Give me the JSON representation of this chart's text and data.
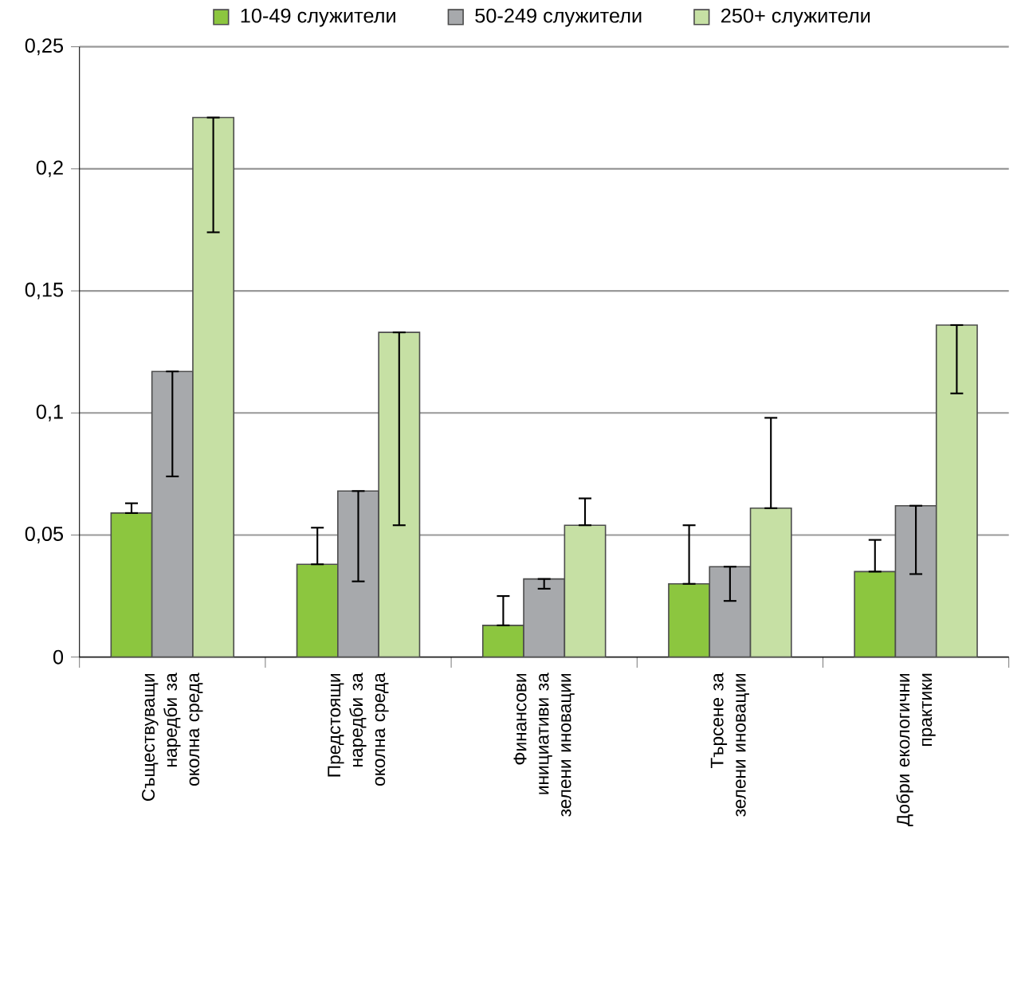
{
  "chart_data": {
    "type": "bar",
    "categories": [
      "Съществуващи наредби за околна среда",
      "Предстоящи наредби за околна среда",
      "Финансови инициативи за зелени иновации",
      "Търсене за зелени иновации",
      "Добри екологични практики"
    ],
    "series": [
      {
        "name": "10-49 служители",
        "color": "#8cc63f",
        "values": [
          0.059,
          0.038,
          0.013,
          0.03,
          0.035
        ],
        "errors": [
          [
            0.059,
            0.063
          ],
          [
            0.038,
            0.053
          ],
          [
            0.013,
            0.025
          ],
          [
            0.03,
            0.054
          ],
          [
            0.035,
            0.048
          ]
        ]
      },
      {
        "name": "50-249 служители",
        "color": "#a7a9ac",
        "values": [
          0.117,
          0.068,
          0.032,
          0.037,
          0.062
        ],
        "errors": [
          [
            0.074,
            0.117
          ],
          [
            0.031,
            0.068
          ],
          [
            0.028,
            0.032
          ],
          [
            0.023,
            0.037
          ],
          [
            0.034,
            0.062
          ]
        ]
      },
      {
        "name": "250+ служители",
        "color": "#c6e0a4",
        "values": [
          0.221,
          0.133,
          0.054,
          0.061,
          0.136
        ],
        "errors": [
          [
            0.174,
            0.221
          ],
          [
            0.054,
            0.133
          ],
          [
            0.054,
            0.065
          ],
          [
            0.061,
            0.098
          ],
          [
            0.108,
            0.136
          ]
        ]
      }
    ],
    "ylim": [
      0,
      0.25
    ],
    "yticks": [
      {
        "value": 0,
        "label": "0"
      },
      {
        "value": 0.05,
        "label": "0,05"
      },
      {
        "value": 0.1,
        "label": "0,1"
      },
      {
        "value": 0.15,
        "label": "0,15"
      },
      {
        "value": 0.2,
        "label": "0,2"
      },
      {
        "value": 0.25,
        "label": "0,25"
      }
    ],
    "grid": "y",
    "legend": "top"
  }
}
